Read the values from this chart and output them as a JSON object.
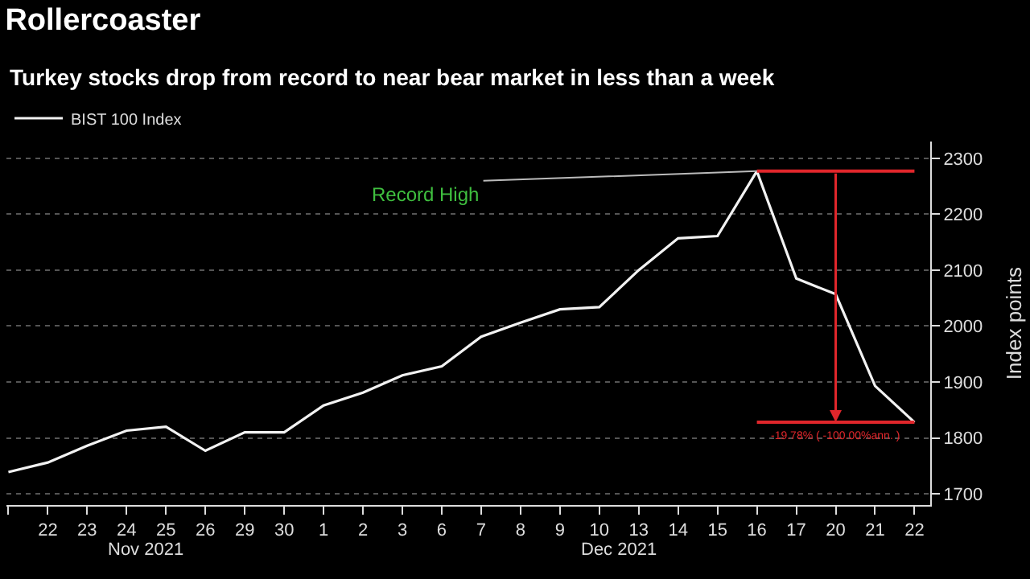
{
  "chart_data": {
    "type": "line",
    "title": "Rollercoaster",
    "subtitle": "Turkey stocks drop from record to near bear market in less than a week",
    "ylabel": "Index points",
    "categories": [
      null,
      "22",
      "23",
      "24",
      "25",
      "26",
      "29",
      "30",
      "1",
      "2",
      "3",
      "6",
      "7",
      "8",
      "9",
      "10",
      "13",
      "14",
      "15",
      "16",
      "17",
      "20",
      "21",
      "22"
    ],
    "series": [
      {
        "name": "BIST 100 Index",
        "color": "#f2f2f2",
        "values": [
          1739,
          1756,
          1786,
          1813,
          1820,
          1777,
          1810,
          1810,
          1858,
          1881,
          1912,
          1928,
          1981,
          2006,
          2030,
          2034,
          2100,
          2157,
          2161,
          2277,
          2085,
          2057,
          1893,
          1828
        ]
      }
    ],
    "ylim": [
      1680,
      2330
    ],
    "yticks": [
      1700,
      1800,
      1900,
      2000,
      2100,
      2200,
      2300
    ],
    "ref_lines": [
      {
        "axis": "y",
        "value": 2277,
        "color": "#e0262b"
      },
      {
        "axis": "y",
        "value": 1828,
        "color": "#e0262b"
      }
    ],
    "annotations": [
      {
        "text": "Record High",
        "x": "16",
        "y": 2277
      },
      {
        "text": "-19.78% ( -100.00%ann. )",
        "x": "20",
        "y": 1828
      },
      "Nov 2021",
      "Dec 2021"
    ],
    "grid": "y",
    "legend": "top left",
    "line_style": "solid",
    "marker": "none"
  }
}
